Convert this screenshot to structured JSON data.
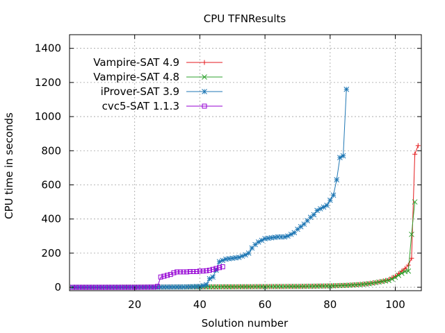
{
  "chart_data": {
    "type": "line",
    "title": "CPU TFNResults",
    "xlabel": "Solution number",
    "ylabel": "CPU time in seconds",
    "xlim": [
      0,
      108
    ],
    "ylim": [
      -20,
      1480
    ],
    "xticks": [
      20,
      40,
      60,
      80,
      100
    ],
    "yticks": [
      0,
      200,
      400,
      600,
      800,
      1000,
      1200,
      1400
    ],
    "grid": true,
    "legend_position": "top-left",
    "series": [
      {
        "name": "Vampire-SAT 4.9",
        "color": "#e41a1c",
        "marker": "plus",
        "x": [
          1,
          10,
          20,
          30,
          40,
          50,
          60,
          70,
          75,
          80,
          85,
          88,
          90,
          92,
          94,
          96,
          98,
          99,
          100,
          101,
          102,
          103,
          104,
          105,
          106,
          107
        ],
        "y": [
          0,
          0,
          1,
          1,
          2,
          3,
          4,
          5,
          7,
          9,
          12,
          15,
          18,
          22,
          28,
          35,
          45,
          55,
          65,
          80,
          95,
          110,
          130,
          170,
          780,
          830
        ]
      },
      {
        "name": "Vampire-SAT 4.8",
        "color": "#2ca02c",
        "marker": "x",
        "x": [
          1,
          10,
          20,
          30,
          40,
          50,
          60,
          70,
          75,
          80,
          85,
          88,
          90,
          92,
          94,
          96,
          98,
          99,
          100,
          101,
          102,
          103,
          104,
          105,
          106
        ],
        "y": [
          0,
          0,
          1,
          1,
          2,
          3,
          4,
          5,
          6,
          8,
          11,
          14,
          17,
          21,
          27,
          34,
          40,
          48,
          58,
          70,
          82,
          92,
          95,
          310,
          500
        ]
      },
      {
        "name": "iProver-SAT 3.9",
        "color": "#1f77b4",
        "marker": "star",
        "x": [
          1,
          10,
          20,
          28,
          35,
          40,
          42,
          43,
          44,
          45,
          46,
          48,
          50,
          52,
          54,
          55,
          56,
          57,
          58,
          59,
          60,
          62,
          64,
          66,
          67,
          68,
          69,
          70,
          72,
          73,
          74,
          75,
          76,
          77,
          78,
          79,
          80,
          81,
          82,
          83,
          84,
          85
        ],
        "y": [
          0,
          0,
          0,
          1,
          2,
          5,
          15,
          50,
          60,
          100,
          150,
          165,
          170,
          175,
          190,
          200,
          230,
          250,
          265,
          275,
          285,
          290,
          295,
          295,
          300,
          310,
          320,
          340,
          370,
          390,
          410,
          425,
          450,
          460,
          470,
          480,
          510,
          540,
          630,
          760,
          770,
          1160
        ]
      },
      {
        "name": "cvc5-SAT 1.1.3",
        "color": "#9400d3",
        "marker": "square",
        "x": [
          1,
          10,
          20,
          26,
          27,
          28,
          29,
          30,
          31,
          32,
          33,
          34,
          35,
          36,
          37,
          38,
          39,
          40,
          41,
          42,
          43,
          44,
          45,
          46,
          47
        ],
        "y": [
          0,
          0,
          0,
          1,
          5,
          60,
          65,
          70,
          75,
          85,
          90,
          90,
          90,
          90,
          92,
          92,
          92,
          95,
          95,
          97,
          100,
          105,
          110,
          115,
          120
        ]
      }
    ]
  }
}
